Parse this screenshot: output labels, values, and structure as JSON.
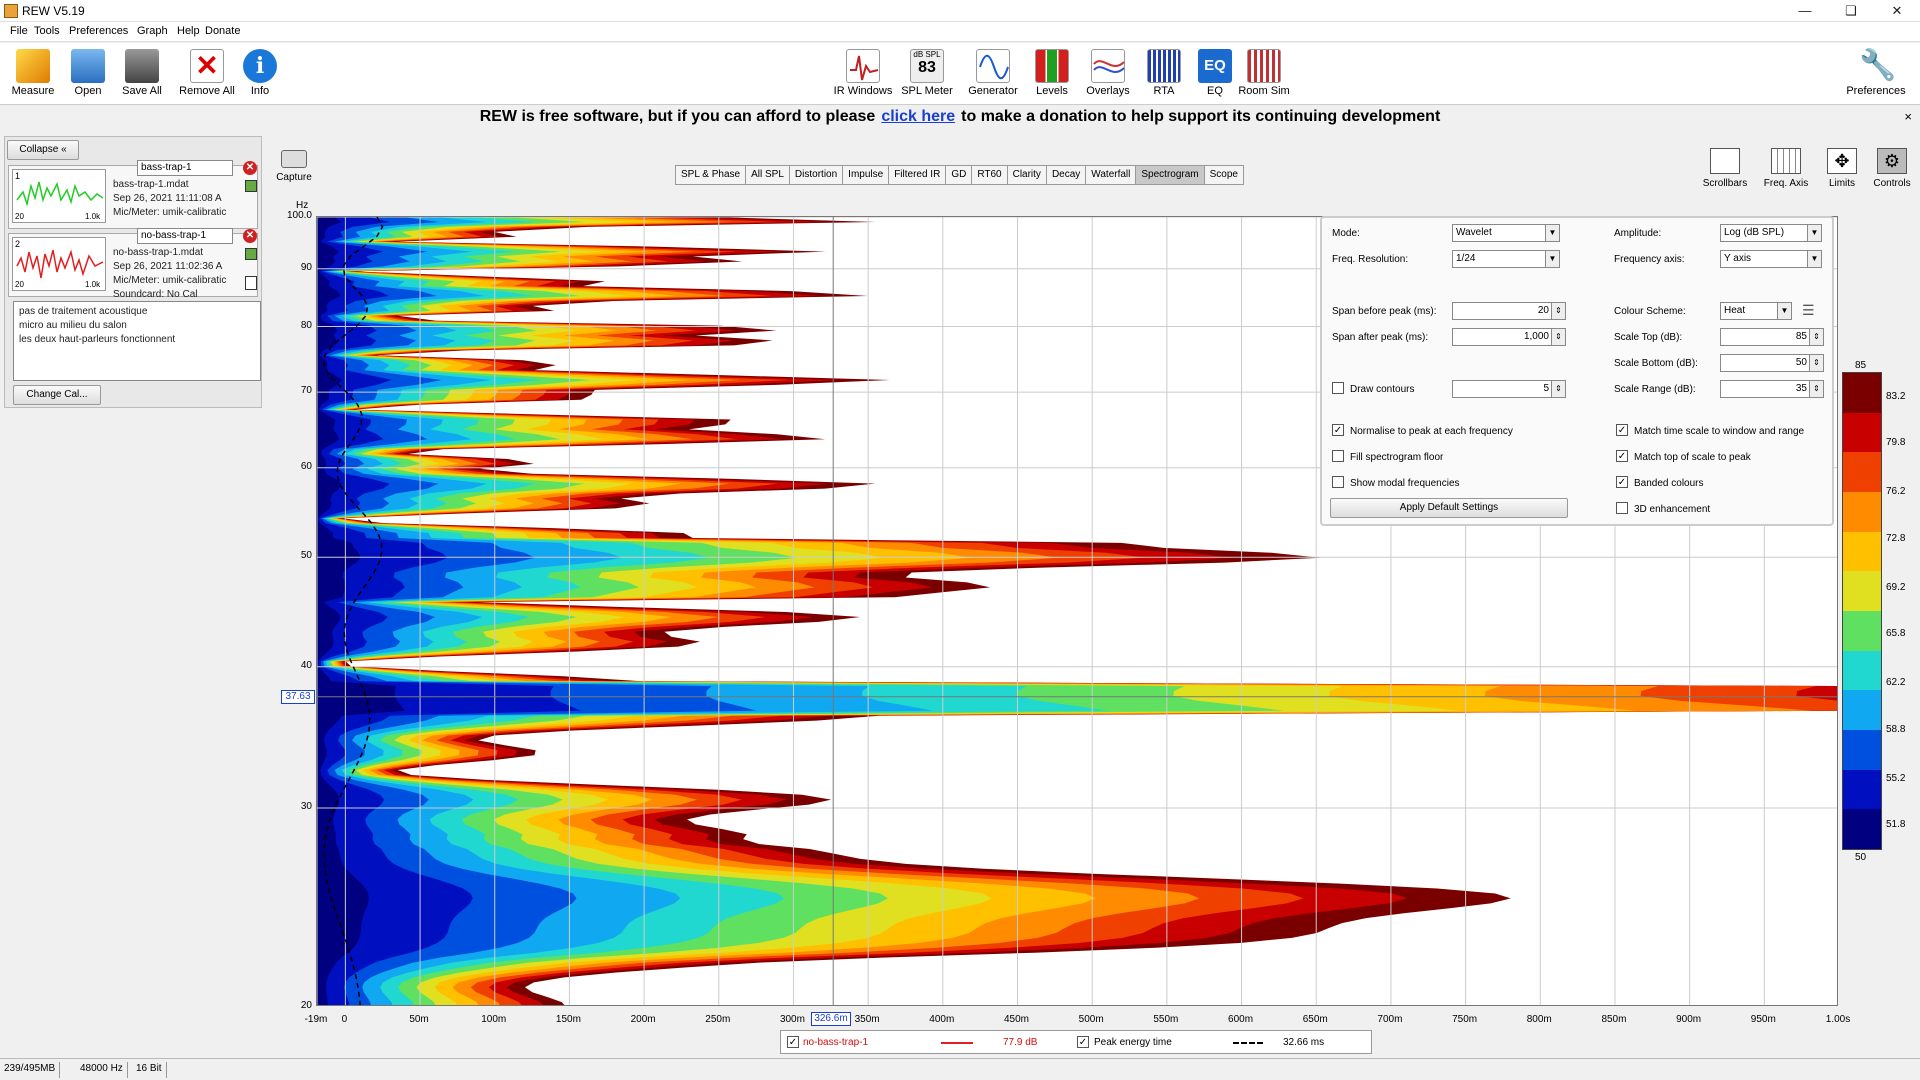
{
  "window": {
    "title": "REW V5.19"
  },
  "menu": [
    "File",
    "Tools",
    "Preferences",
    "Graph",
    "Help",
    "Donate"
  ],
  "toolbar_left": [
    {
      "label": "Measure",
      "icon": "measure-icon"
    },
    {
      "label": "Open",
      "icon": "folder-icon"
    },
    {
      "label": "Save All",
      "icon": "save-icon"
    },
    {
      "label": "Remove All",
      "icon": "remove-icon"
    },
    {
      "label": "Info",
      "icon": "info-icon"
    }
  ],
  "toolbar_center": [
    {
      "label": "IR Windows",
      "icon": "ir-windows-icon"
    },
    {
      "label": "SPL Meter",
      "icon": "spl-meter-icon",
      "badge_top": "dB SPL",
      "badge_value": "83"
    },
    {
      "label": "Generator",
      "icon": "generator-icon"
    },
    {
      "label": "Levels",
      "icon": "levels-icon"
    },
    {
      "label": "Overlays",
      "icon": "overlays-icon"
    },
    {
      "label": "RTA",
      "icon": "rta-icon"
    },
    {
      "label": "EQ",
      "icon": "eq-icon",
      "badge_value": "EQ"
    },
    {
      "label": "Room Sim",
      "icon": "room-sim-icon"
    }
  ],
  "toolbar_right": {
    "label": "Preferences",
    "icon": "wrench-icon"
  },
  "donate": {
    "before": "REW is free software, but if you can afford to please",
    "link": "click here",
    "after": "to make a donation to help support its continuing development",
    "close": "×"
  },
  "panel": {
    "collapse": "Collapse",
    "measurements": [
      {
        "index": "1",
        "name": "bass-trap-1",
        "file": "bass-trap-1.mdat",
        "date": "Sep 26, 2021 11:11:08 A",
        "mic": "Mic/Meter: umik-calibratic",
        "thumb_x0": "20",
        "thumb_x1": "1.0k",
        "color": "#22cc22"
      },
      {
        "index": "2",
        "name": "no-bass-trap-1",
        "file": "no-bass-trap-1.mdat",
        "date": "Sep 26, 2021 11:02:36 A",
        "mic": "Mic/Meter: umik-calibratic",
        "soundcard": "Soundcard: No Cal",
        "thumb_x0": "20",
        "thumb_x1": "1.0k",
        "color": "#e02020"
      }
    ],
    "notes": [
      "pas de traitement acoustique",
      "micro au milieu du salon",
      "les deux haut-parleurs fonctionnent"
    ],
    "change_cal": "Change Cal..."
  },
  "capture": "Capture",
  "tabs": [
    "SPL & Phase",
    "All SPL",
    "Distortion",
    "Impulse",
    "Filtered IR",
    "GD",
    "RT60",
    "Clarity",
    "Decay",
    "Waterfall",
    "Spectrogram",
    "Scope"
  ],
  "selected_tab": "Spectrogram",
  "right_tools": [
    {
      "label": "Scrollbars",
      "icon": "scrollbars-icon"
    },
    {
      "label": "Freq. Axis",
      "icon": "freq-axis-icon"
    },
    {
      "label": "Limits",
      "icon": "limits-icon"
    },
    {
      "label": "Controls",
      "icon": "controls-icon"
    }
  ],
  "controls": {
    "mode_label": "Mode:",
    "mode": "Wavelet",
    "freqres_label": "Freq. Resolution:",
    "freqres": "1/24",
    "amplitude_label": "Amplitude:",
    "amplitude": "Log (dB SPL)",
    "freqaxis_label": "Frequency axis:",
    "freqaxis": "Y axis",
    "span_before_label": "Span before peak (ms):",
    "span_before": "20",
    "span_after_label": "Span after peak (ms):",
    "span_after": "1,000",
    "scheme_label": "Colour Scheme:",
    "scheme": "Heat",
    "scale_top_label": "Scale Top (dB):",
    "scale_top": "85",
    "scale_bottom_label": "Scale Bottom (dB):",
    "scale_bottom": "50",
    "scale_range_label": "Scale Range (dB):",
    "scale_range": "35",
    "draw_contours_label": "Draw contours",
    "draw_contours": false,
    "contours_value": "5",
    "normalise_label": "Normalise to peak at each frequency",
    "normalise": true,
    "fill_floor_label": "Fill spectrogram floor",
    "fill_floor": false,
    "modal_label": "Show modal frequencies",
    "modal": false,
    "match_time_label": "Match time scale to window and range",
    "match_time": true,
    "match_top_label": "Match top of scale to peak",
    "match_top": true,
    "banded_label": "Banded colours",
    "banded": true,
    "enh3d_label": "3D enhancement",
    "enh3d": false,
    "apply": "Apply Default Settings"
  },
  "chart_data": {
    "type": "heatmap",
    "title": "",
    "xlabel": "",
    "ylabel": "Hz",
    "x_ticks": [
      "-19m",
      "0",
      "50m",
      "100m",
      "150m",
      "200m",
      "250m",
      "300m",
      "350m",
      "400m",
      "450m",
      "500m",
      "550m",
      "600m",
      "650m",
      "700m",
      "750m",
      "800m",
      "850m",
      "900m",
      "950m",
      "1.00s"
    ],
    "y_ticks": [
      "100.0",
      "90",
      "80",
      "70",
      "60",
      "50",
      "40",
      "30",
      "20"
    ],
    "y_scale": "log",
    "xlim_ms": [
      -19,
      1000
    ],
    "ylim_hz": [
      20,
      100
    ],
    "cursor_freq_label": "37.63",
    "cursor_time_label": "326.6m",
    "cursor_freq_hz": 37.63,
    "cursor_time_ms": 326.6,
    "colorbar": {
      "top": "85",
      "bottom": "50",
      "ticks": [
        "83.2",
        "79.8",
        "76.2",
        "72.8",
        "69.2",
        "65.8",
        "62.2",
        "58.8",
        "55.2",
        "51.8"
      ],
      "colors": [
        "#7a0000",
        "#c80000",
        "#f04000",
        "#ff8c00",
        "#ffc000",
        "#e0e020",
        "#60e060",
        "#20d8d0",
        "#10a8f0",
        "#0050e0",
        "#0010c0",
        "#000080"
      ]
    }
  },
  "legend": {
    "name": "no-bass-trap-1",
    "value": "77.9 dB",
    "peak_label": "Peak energy time",
    "peak_value": "32.66 ms"
  },
  "status": [
    "239/495MB",
    "48000 Hz",
    "16 Bit"
  ]
}
